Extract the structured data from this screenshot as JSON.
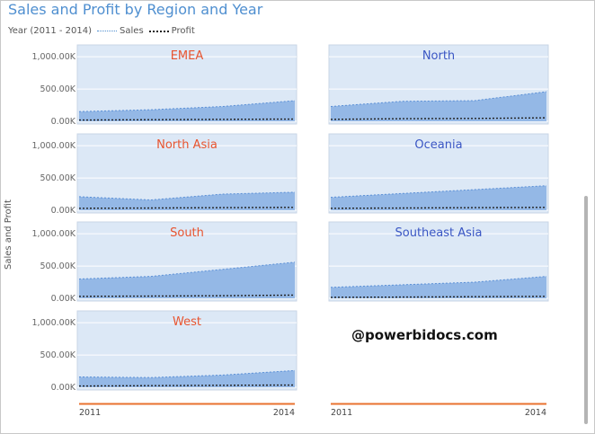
{
  "title": "Sales and Profit by Region and Year",
  "legend": {
    "label": "Year (2011 - 2014)",
    "sales": "Sales",
    "profit": "Profit"
  },
  "watermark": "@powerbidocs.com",
  "chart_data": {
    "type": "area",
    "small_multiples": true,
    "title": "Sales and Profit by Region and Year",
    "ylabel": "Sales and Profit",
    "x": [
      "2011",
      "2012",
      "2013",
      "2014"
    ],
    "x_tick_labels": [
      "2011",
      "2014"
    ],
    "ylim": [
      0,
      1100000
    ],
    "y_ticks": [
      0,
      500000,
      1000000
    ],
    "y_tick_labels": [
      "0.00K",
      "500.00K",
      "1,000.00K"
    ],
    "grid": true,
    "legend_position": "top-left",
    "colors": {
      "sales_fill": "#94b8e6",
      "sales_line": "#5a8fd6",
      "profit_line": "#222222",
      "panel_bg": "#dce8f6",
      "title_red": "#e8542f",
      "title_blue": "#3a56c4",
      "axis_orange": "#e8722f"
    },
    "panels": [
      {
        "region": "EMEA",
        "title_color": "red",
        "sales": [
          150000,
          180000,
          230000,
          320000
        ],
        "profit": [
          20000,
          25000,
          30000,
          35000
        ]
      },
      {
        "region": "North",
        "title_color": "blue",
        "sales": [
          230000,
          310000,
          320000,
          460000
        ],
        "profit": [
          30000,
          40000,
          45000,
          55000
        ]
      },
      {
        "region": "North Asia",
        "title_color": "red",
        "sales": [
          210000,
          160000,
          250000,
          280000
        ],
        "profit": [
          30000,
          35000,
          40000,
          45000
        ]
      },
      {
        "region": "Oceania",
        "title_color": "blue",
        "sales": [
          200000,
          260000,
          320000,
          380000
        ],
        "profit": [
          30000,
          35000,
          40000,
          45000
        ]
      },
      {
        "region": "South",
        "title_color": "red",
        "sales": [
          300000,
          340000,
          450000,
          560000
        ],
        "profit": [
          30000,
          35000,
          40000,
          50000
        ]
      },
      {
        "region": "Southeast Asia",
        "title_color": "blue",
        "sales": [
          170000,
          210000,
          250000,
          340000
        ],
        "profit": [
          15000,
          20000,
          25000,
          30000
        ]
      },
      {
        "region": "West",
        "title_color": "red",
        "sales": [
          160000,
          150000,
          190000,
          260000
        ],
        "profit": [
          20000,
          25000,
          30000,
          35000
        ]
      }
    ]
  }
}
